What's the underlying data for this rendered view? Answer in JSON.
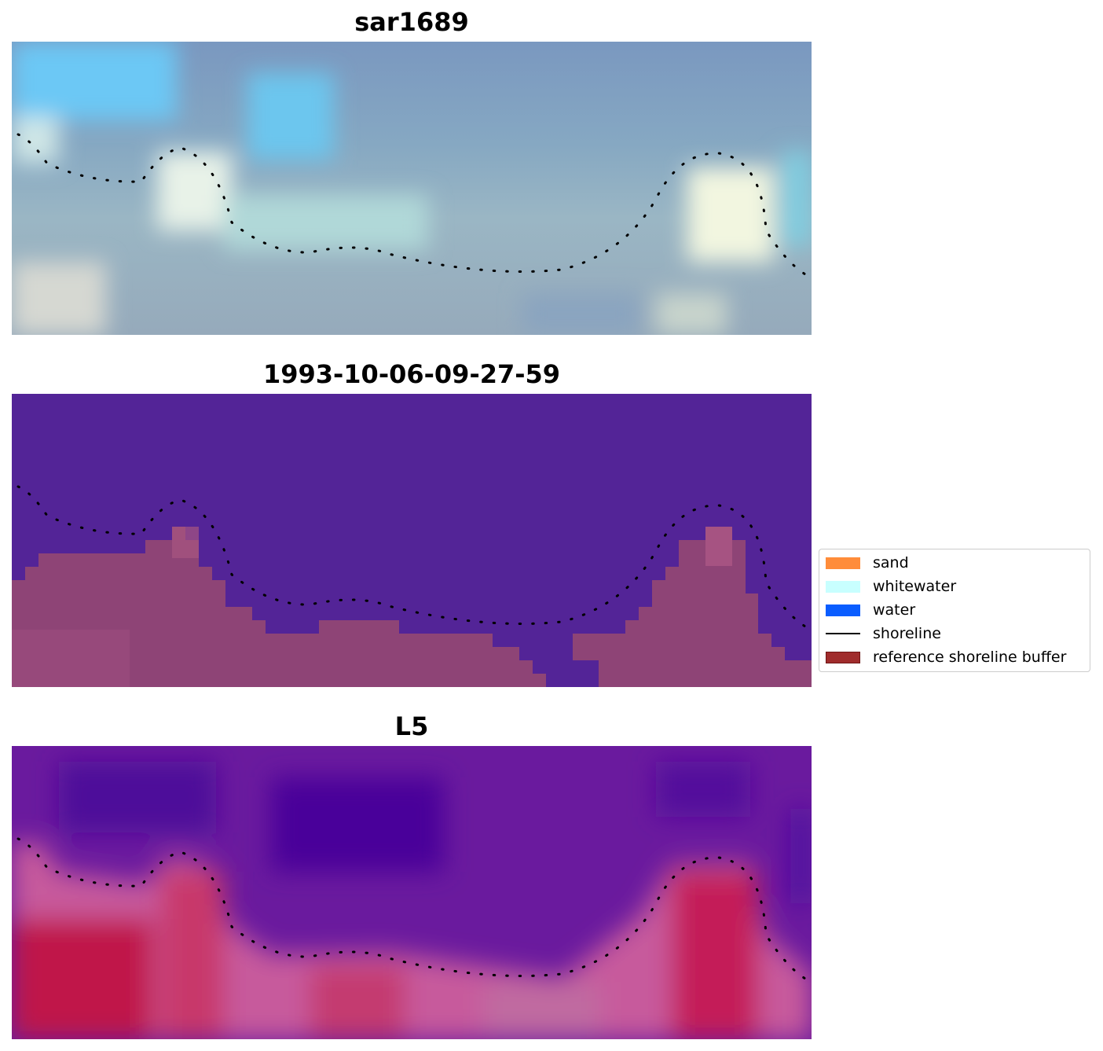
{
  "figure": {
    "panels": [
      {
        "id": "rgb",
        "title": "sar1689",
        "icon": "rgb-image"
      },
      {
        "id": "classified",
        "title": "1993-10-06-09-27-59",
        "icon": "classified-image"
      },
      {
        "id": "index",
        "title": "L5",
        "icon": "index-image"
      }
    ],
    "legend": {
      "items": [
        {
          "label": "sand",
          "color": "#ff8c3a",
          "kind": "patch"
        },
        {
          "label": "whitewater",
          "color": "#c8ffff",
          "kind": "patch"
        },
        {
          "label": "water",
          "color": "#0a5dff",
          "kind": "patch"
        },
        {
          "label": "shoreline",
          "color": "#000000",
          "kind": "line"
        },
        {
          "label": "reference shoreline buffer",
          "color": "#a02c2c",
          "kind": "patch"
        }
      ]
    },
    "colors": {
      "water_class": "#532497",
      "buffer_class": "#8e4476",
      "shoreline": "#000000"
    }
  }
}
